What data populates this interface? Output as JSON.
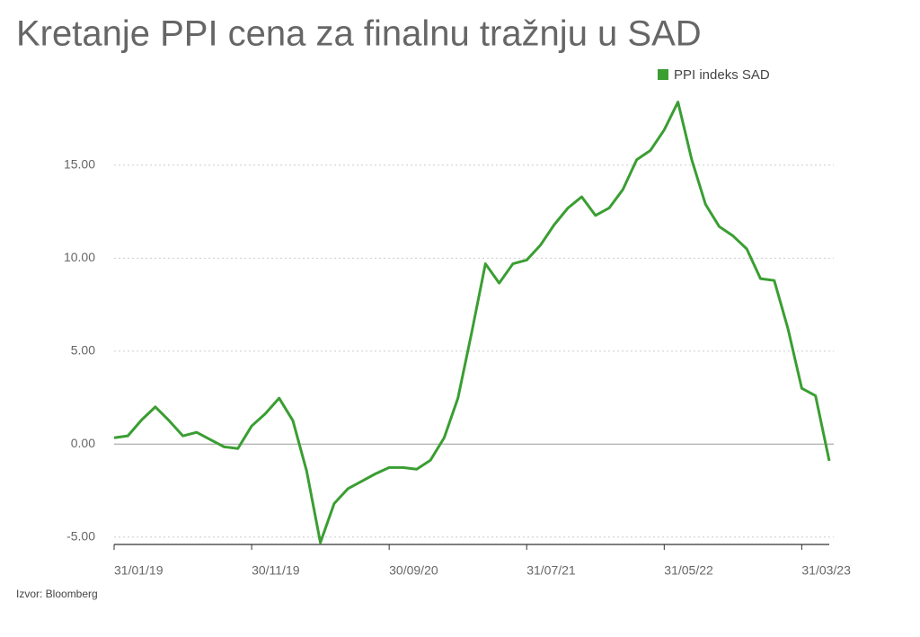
{
  "chart_data": {
    "type": "line",
    "title": "Kretanje PPI cena za finalnu tražnju u SAD",
    "source": "Izvor: Bloomberg",
    "legend": "top-right",
    "grid": true,
    "categories": [
      "31/01/19",
      null,
      null,
      null,
      null,
      null,
      null,
      null,
      null,
      null,
      "30/11/19",
      null,
      null,
      null,
      null,
      null,
      null,
      null,
      null,
      null,
      "30/09/20",
      null,
      null,
      null,
      null,
      null,
      null,
      null,
      null,
      null,
      "31/07/21",
      null,
      null,
      null,
      null,
      null,
      null,
      null,
      null,
      null,
      "31/05/22",
      null,
      null,
      null,
      null,
      null,
      null,
      null,
      null,
      null,
      "31/03/23",
      null,
      null
    ],
    "series": [
      {
        "name": "PPI indeks SAD",
        "color": "#3a9e32",
        "values": [
          0.34,
          0.44,
          1.3,
          2.0,
          1.26,
          0.44,
          0.63,
          0.24,
          -0.15,
          -0.24,
          0.97,
          1.64,
          2.47,
          1.26,
          -1.45,
          -5.3,
          -3.2,
          -2.4,
          -2.0,
          -1.6,
          -1.26,
          -1.26,
          -1.35,
          -0.87,
          0.34,
          2.47,
          6.0,
          9.7,
          8.66,
          9.7,
          9.9,
          10.7,
          11.8,
          12.7,
          13.3,
          12.3,
          12.7,
          13.7,
          15.3,
          15.8,
          16.9,
          18.4,
          15.3,
          12.9,
          11.7,
          11.2,
          10.5,
          8.9,
          8.8,
          6.2,
          3.0,
          2.6,
          -0.9
        ]
      }
    ],
    "ylim": [
      -5.4,
      19.2
    ],
    "yticks": [
      {
        "value": -5,
        "label": "-5.00"
      },
      {
        "value": 0,
        "label": "0.00"
      },
      {
        "value": 5,
        "label": "5.00"
      },
      {
        "value": 10,
        "label": "10.00"
      },
      {
        "value": 15,
        "label": "15.00"
      }
    ]
  }
}
